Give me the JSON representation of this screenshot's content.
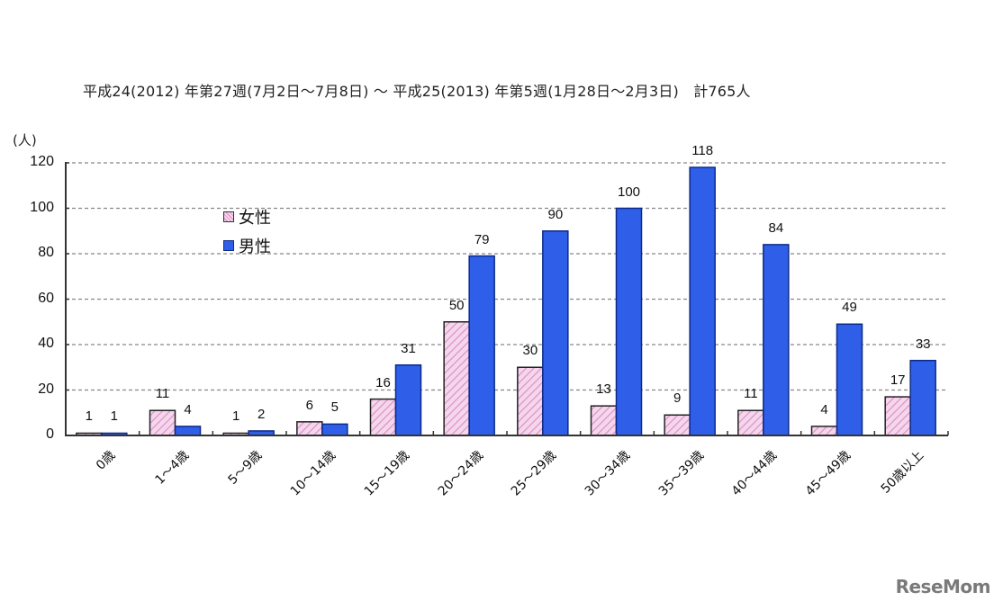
{
  "title": "平成24(2012) 年第27週(7月2日〜7月8日) 〜 平成25(2013) 年第5週(1月28日〜2月3日)　計765人",
  "y_unit_label": "(人)",
  "legend": [
    {
      "label": "女性",
      "color": "#f0c8e6",
      "pattern": "pink-diagonal-hatch"
    },
    {
      "label": "男性",
      "color": "#2e5ce6",
      "pattern": "solid"
    }
  ],
  "logo": "ReseMom",
  "colors": {
    "female": "#f3cbe8",
    "female_hatch": "#d98fc4",
    "male": "#2f5fe8",
    "male_border": "#0d2a8a",
    "grid": "#888888",
    "axis": "#333333"
  },
  "chart_data": {
    "type": "bar",
    "title": "平成24(2012) 年第27週(7月2日〜7月8日) 〜 平成25(2013) 年第5週(1月28日〜2月3日)　計765人",
    "xlabel": "",
    "ylabel": "(人)",
    "ylim": [
      0,
      120
    ],
    "yticks": [
      0,
      20,
      40,
      60,
      80,
      100,
      120
    ],
    "grid": true,
    "legend_position": "upper-left inside",
    "categories": [
      "0歳",
      "1〜4歳",
      "5〜9歳",
      "10〜14歳",
      "15〜19歳",
      "20〜24歳",
      "25〜29歳",
      "30〜34歳",
      "35〜39歳",
      "40〜44歳",
      "45〜49歳",
      "50歳以上"
    ],
    "series": [
      {
        "name": "女性",
        "values": [
          1,
          11,
          1,
          6,
          16,
          50,
          30,
          13,
          9,
          11,
          4,
          17
        ]
      },
      {
        "name": "男性",
        "values": [
          1,
          4,
          2,
          5,
          31,
          79,
          90,
          100,
          118,
          84,
          49,
          33
        ]
      }
    ],
    "total": 765
  }
}
